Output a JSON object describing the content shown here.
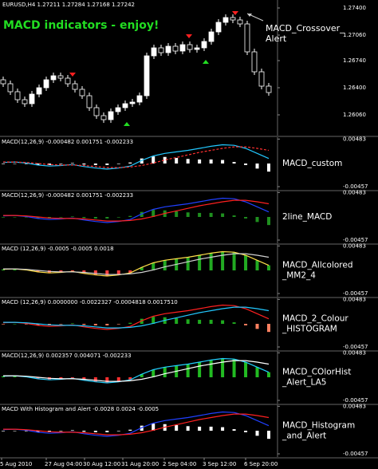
{
  "header": "EURUSD,H4  1.27211 1.27284 1.27168 1.27242",
  "chart_data": [
    {
      "type": "candlestick",
      "title": "MACD indicators - enjoy!",
      "annotation": [
        "MACD_Crossover_",
        "Alert"
      ],
      "ylim": [
        1.258,
        1.275
      ],
      "yticks": [
        {
          "value": 1.274,
          "label": "1.27400"
        },
        {
          "value": 1.2706,
          "label": "1.27060"
        },
        {
          "value": 1.2674,
          "label": "1.26740"
        },
        {
          "value": 1.264,
          "label": "1.26400"
        },
        {
          "value": 1.2606,
          "label": "1.26060"
        }
      ],
      "open": [
        1.265,
        1.2645,
        1.2635,
        1.2625,
        1.262,
        1.2632,
        1.264,
        1.265,
        1.2655,
        1.2652,
        1.2645,
        1.2638,
        1.263,
        1.2615,
        1.2605,
        1.26,
        1.261,
        1.2615,
        1.262,
        1.2622,
        1.263,
        1.268,
        1.269,
        1.2684,
        1.2692,
        1.2686,
        1.2694,
        1.2688,
        1.269,
        1.2698,
        1.271,
        1.2722,
        1.2728,
        1.2725,
        1.272,
        1.2685,
        1.266,
        1.2642
      ],
      "close": [
        1.2645,
        1.2635,
        1.2625,
        1.262,
        1.2632,
        1.264,
        1.265,
        1.2655,
        1.2652,
        1.2645,
        1.2638,
        1.263,
        1.2615,
        1.2605,
        1.26,
        1.261,
        1.2615,
        1.262,
        1.2622,
        1.263,
        1.268,
        1.269,
        1.2684,
        1.2692,
        1.2686,
        1.2694,
        1.2688,
        1.269,
        1.2698,
        1.271,
        1.2722,
        1.2728,
        1.2725,
        1.272,
        1.2685,
        1.266,
        1.2642,
        1.2634
      ],
      "high": [
        1.2654,
        1.2649,
        1.2639,
        1.2629,
        1.2636,
        1.2644,
        1.2654,
        1.2659,
        1.2659,
        1.2656,
        1.2649,
        1.2642,
        1.2634,
        1.2619,
        1.2609,
        1.2614,
        1.2619,
        1.2624,
        1.2626,
        1.2634,
        1.2684,
        1.2694,
        1.2694,
        1.2696,
        1.2696,
        1.2698,
        1.2698,
        1.2694,
        1.2702,
        1.2714,
        1.2726,
        1.2732,
        1.2732,
        1.2729,
        1.2724,
        1.2689,
        1.2664,
        1.2646
      ],
      "low": [
        1.2641,
        1.2631,
        1.2621,
        1.2616,
        1.2616,
        1.2628,
        1.2636,
        1.2646,
        1.2648,
        1.2641,
        1.2634,
        1.2626,
        1.2611,
        1.2601,
        1.2596,
        1.2596,
        1.2606,
        1.2611,
        1.2616,
        1.2618,
        1.2626,
        1.2676,
        1.268,
        1.268,
        1.2682,
        1.2682,
        1.2684,
        1.2684,
        1.2686,
        1.2694,
        1.2706,
        1.2718,
        1.2721,
        1.2716,
        1.2681,
        1.2656,
        1.2638,
        1.263
      ],
      "up_color": "#ffffff",
      "down_color": "#000000"
    },
    {
      "type": "macd",
      "title": "MACD(12,26,9) -0.000482 0.001751 -0.002233",
      "label": [
        "MACD_custom"
      ],
      "ylim": [
        -0.0052,
        0.0052
      ],
      "yticks": [
        0.00483,
        -0.00457
      ],
      "histogram": {
        "colors": [
          "#ffffff",
          "#ffffff"
        ],
        "values": [
          -0.0001,
          0.0,
          -0.0001,
          -0.0003,
          -0.0003,
          -0.0001,
          0.0001,
          -0.0002,
          -0.0003,
          -0.0003,
          -0.0001,
          0.0002,
          0.001,
          0.0014,
          0.0013,
          0.0011,
          0.0009,
          0.0008,
          0.0008,
          0.0007,
          0.0003,
          -0.0003,
          -0.001,
          -0.0016
        ]
      },
      "lines": [
        {
          "color": "#22c8ff",
          "dash": false,
          "values": [
            0.0002,
            0.0003,
            0.0001,
            -0.0003,
            -0.0005,
            -0.0004,
            -0.0002,
            -0.0006,
            -0.0009,
            -0.0011,
            -0.0009,
            -0.0005,
            0.0006,
            0.0015,
            0.002,
            0.0023,
            0.0026,
            0.003,
            0.0034,
            0.0037,
            0.0036,
            0.003,
            0.002,
            0.001
          ]
        },
        {
          "color": "#ff3030",
          "dash": true,
          "values": [
            0.0003,
            0.0003,
            0.0002,
            0.0,
            -0.0002,
            -0.0003,
            -0.0003,
            -0.0004,
            -0.0006,
            -0.0008,
            -0.0008,
            -0.0007,
            -0.0004,
            0.0001,
            0.0007,
            0.0012,
            0.0017,
            0.0022,
            0.0026,
            0.003,
            0.0033,
            0.0033,
            0.003,
            0.0026
          ]
        }
      ]
    },
    {
      "type": "macd",
      "title": "MACD(12,26,9) -0.000482 0.001751 -0.002233",
      "label": [
        "2line_MACD"
      ],
      "ylim": [
        -0.0052,
        0.0052
      ],
      "yticks": [
        0.00483,
        -0.00457
      ],
      "histogram": {
        "colors": [
          "#1f8f1f",
          "#1f8f1f"
        ],
        "values": [
          -0.0001,
          0.0,
          -0.0001,
          -0.0003,
          -0.0003,
          -0.0001,
          0.0001,
          -0.0002,
          -0.0003,
          -0.0003,
          -0.0001,
          0.0002,
          0.001,
          0.0014,
          0.0013,
          0.0011,
          0.0009,
          0.0008,
          0.0008,
          0.0007,
          0.0003,
          -0.0003,
          -0.001,
          -0.0016
        ]
      },
      "lines": [
        {
          "color": "#2040ff",
          "dash": false,
          "values": [
            0.0002,
            0.0003,
            0.0001,
            -0.0003,
            -0.0005,
            -0.0004,
            -0.0002,
            -0.0006,
            -0.0009,
            -0.0011,
            -0.0009,
            -0.0005,
            0.0006,
            0.0015,
            0.002,
            0.0023,
            0.0026,
            0.003,
            0.0034,
            0.0037,
            0.0036,
            0.003,
            0.002,
            0.001
          ]
        },
        {
          "color": "#ff2020",
          "dash": false,
          "values": [
            0.0003,
            0.0003,
            0.0002,
            0.0,
            -0.0002,
            -0.0003,
            -0.0003,
            -0.0004,
            -0.0006,
            -0.0008,
            -0.0008,
            -0.0007,
            -0.0004,
            0.0001,
            0.0007,
            0.0012,
            0.0017,
            0.0022,
            0.0026,
            0.003,
            0.0033,
            0.0033,
            0.003,
            0.0026
          ]
        }
      ]
    },
    {
      "type": "macd",
      "title": "MACD (12,26,9) -0.0005 -0.0005 0.0018",
      "label": [
        "MACD_Allcolored",
        "_MM2_4"
      ],
      "ylim": [
        -0.0052,
        0.0052
      ],
      "yticks": [
        0.00483,
        -0.00457
      ],
      "histogram": {
        "colors": [
          "#22aa22",
          "#ff4040"
        ],
        "values": [
          0.0002,
          0.0003,
          0.0001,
          -0.0003,
          -0.0005,
          -0.0004,
          -0.0002,
          -0.0006,
          -0.0009,
          -0.0011,
          -0.0009,
          -0.0005,
          0.0006,
          0.0015,
          0.002,
          0.0023,
          0.0026,
          0.003,
          0.0034,
          0.0037,
          0.0036,
          0.003,
          0.002,
          0.001
        ]
      },
      "lines": [
        {
          "color": "#ffe04a",
          "dash": false,
          "values": [
            0.0002,
            0.0003,
            0.0001,
            -0.0003,
            -0.0005,
            -0.0004,
            -0.0002,
            -0.0006,
            -0.0009,
            -0.0011,
            -0.0009,
            -0.0005,
            0.0006,
            0.0015,
            0.002,
            0.0023,
            0.0026,
            0.003,
            0.0034,
            0.0037,
            0.0036,
            0.003,
            0.002,
            0.001
          ]
        },
        {
          "color": "#d0d0d0",
          "dash": false,
          "values": [
            0.0003,
            0.0003,
            0.0002,
            0.0,
            -0.0002,
            -0.0003,
            -0.0003,
            -0.0004,
            -0.0006,
            -0.0008,
            -0.0008,
            -0.0007,
            -0.0004,
            0.0001,
            0.0007,
            0.0012,
            0.0017,
            0.0022,
            0.0026,
            0.003,
            0.0033,
            0.0033,
            0.003,
            0.0026
          ]
        }
      ]
    },
    {
      "type": "macd",
      "title": "MACD  (12,26,9) 0.0000000 -0.0022327 -0.0004818 0.0017510",
      "label": [
        "MACD_2_Colour",
        "_HISTOGRAM"
      ],
      "ylim": [
        -0.0052,
        0.0052
      ],
      "yticks": [
        0.00483,
        -0.00457
      ],
      "histogram": {
        "colors": [
          "#1faa1f",
          "#ff8060"
        ],
        "values": [
          -0.0001,
          0.0,
          -0.0001,
          -0.0003,
          -0.0003,
          -0.0001,
          0.0001,
          -0.0002,
          -0.0003,
          -0.0003,
          -0.0001,
          0.0002,
          0.001,
          0.0014,
          0.0013,
          0.0011,
          0.0009,
          0.0008,
          0.0008,
          0.0007,
          0.0003,
          -0.0003,
          -0.001,
          -0.0016
        ]
      },
      "lines": [
        {
          "color": "#ff2020",
          "dash": false,
          "values": [
            0.0002,
            0.0003,
            0.0001,
            -0.0003,
            -0.0005,
            -0.0004,
            -0.0002,
            -0.0006,
            -0.0009,
            -0.0011,
            -0.0009,
            -0.0005,
            0.0006,
            0.0015,
            0.002,
            0.0023,
            0.0026,
            0.003,
            0.0034,
            0.0037,
            0.0036,
            0.003,
            0.002,
            0.001
          ]
        },
        {
          "color": "#22c8ff",
          "dash": false,
          "values": [
            0.0003,
            0.0003,
            0.0002,
            0.0,
            -0.0002,
            -0.0003,
            -0.0003,
            -0.0004,
            -0.0006,
            -0.0008,
            -0.0008,
            -0.0007,
            -0.0004,
            0.0001,
            0.0007,
            0.0012,
            0.0017,
            0.0022,
            0.0026,
            0.003,
            0.0033,
            0.0033,
            0.003,
            0.0026
          ]
        }
      ]
    },
    {
      "type": "macd",
      "title": "MACD(12,26,9) 0.002357 0.004071 -0.002233",
      "label": [
        "MACD_COlorHist",
        "_Alert_LA5"
      ],
      "ylim": [
        -0.0052,
        0.0052
      ],
      "yticks": [
        0.00483,
        -0.00457
      ],
      "histogram": {
        "colors": [
          "#22bb22",
          "#ff3030"
        ],
        "values": [
          0.0002,
          0.0003,
          0.0001,
          -0.0003,
          -0.0005,
          -0.0004,
          -0.0002,
          -0.0006,
          -0.0009,
          -0.0011,
          -0.0009,
          -0.0005,
          0.0006,
          0.0015,
          0.002,
          0.0023,
          0.0026,
          0.003,
          0.0034,
          0.0037,
          0.0036,
          0.003,
          0.002,
          0.001
        ]
      },
      "lines": [
        {
          "color": "#22d0ff",
          "dash": false,
          "values": [
            0.0002,
            0.0003,
            0.0001,
            -0.0003,
            -0.0005,
            -0.0004,
            -0.0002,
            -0.0006,
            -0.0009,
            -0.0011,
            -0.0009,
            -0.0005,
            0.0006,
            0.0015,
            0.002,
            0.0023,
            0.0026,
            0.003,
            0.0034,
            0.0037,
            0.0036,
            0.003,
            0.002,
            0.001
          ]
        },
        {
          "color": "#ffffff",
          "dash": false,
          "values": [
            0.0003,
            0.0003,
            0.0002,
            0.0,
            -0.0002,
            -0.0003,
            -0.0003,
            -0.0004,
            -0.0006,
            -0.0008,
            -0.0008,
            -0.0007,
            -0.0004,
            0.0001,
            0.0007,
            0.0012,
            0.0017,
            0.0022,
            0.0026,
            0.003,
            0.0033,
            0.0033,
            0.003,
            0.0026
          ]
        }
      ]
    },
    {
      "type": "macd",
      "title": "MACD With Histogram and Alert -0.0028 0.0024 -0.0005",
      "label": [
        "MACD_Histogram",
        "_and_Alert"
      ],
      "ylim": [
        -0.0052,
        0.0052
      ],
      "yticks": [
        0.00483,
        -0.00457
      ],
      "histogram": {
        "colors": [
          "#ffffff",
          "#ffffff"
        ],
        "values": [
          -0.0001,
          0.0,
          -0.0001,
          -0.0003,
          -0.0003,
          -0.0001,
          0.0001,
          -0.0002,
          -0.0003,
          -0.0003,
          -0.0001,
          0.0002,
          0.001,
          0.0014,
          0.0013,
          0.0011,
          0.0009,
          0.0008,
          0.0008,
          0.0007,
          0.0003,
          -0.0003,
          -0.001,
          -0.0016
        ]
      },
      "lines": [
        {
          "color": "#2040ff",
          "dash": false,
          "values": [
            0.0002,
            0.0003,
            0.0001,
            -0.0003,
            -0.0005,
            -0.0004,
            -0.0002,
            -0.0006,
            -0.0009,
            -0.0011,
            -0.0009,
            -0.0005,
            0.0006,
            0.0015,
            0.002,
            0.0023,
            0.0026,
            0.003,
            0.0034,
            0.0037,
            0.0036,
            0.003,
            0.002,
            0.001
          ]
        },
        {
          "color": "#ff2020",
          "dash": false,
          "values": [
            0.0003,
            0.0003,
            0.0002,
            0.0,
            -0.0002,
            -0.0003,
            -0.0003,
            -0.0004,
            -0.0006,
            -0.0008,
            -0.0008,
            -0.0007,
            -0.0004,
            0.0001,
            0.0007,
            0.0012,
            0.0017,
            0.0022,
            0.0026,
            0.003,
            0.0033,
            0.0033,
            0.003,
            0.0026
          ]
        }
      ]
    }
  ],
  "time_axis": [
    "5 Aug 2010",
    "27 Aug 04:00",
    "30 Aug 12:00",
    "31 Aug 20:00",
    "2 Sep 04:00",
    "3 Sep 12:00",
    "6 Sep 20:00"
  ]
}
